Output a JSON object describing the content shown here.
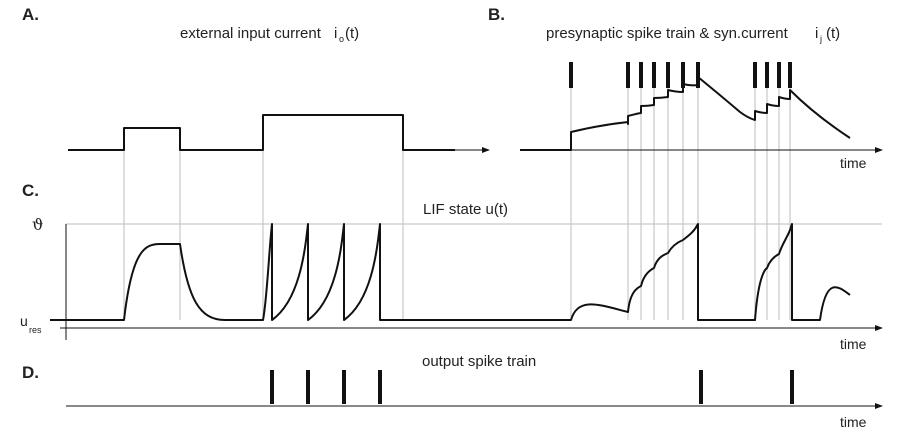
{
  "panels": {
    "a": {
      "label": "A.",
      "caption": "external input current",
      "symbol": "i",
      "symbol_sub": "o",
      "symbol_arg": "(t)"
    },
    "b": {
      "label": "B.",
      "caption": "presynaptic spike train & syn.current",
      "symbol": "i",
      "symbol_sub": "j",
      "symbol_arg": "(t)",
      "axis_label": "time"
    },
    "c": {
      "label": "C.",
      "caption": "LIF state u(t)",
      "threshold_symbol": "ϑ",
      "reset_symbol": "u",
      "reset_sub": "res",
      "axis_label": "time"
    },
    "d": {
      "label": "D.",
      "caption": "output spike train",
      "axis_label": "time"
    }
  },
  "colors": {
    "trace": "#111111",
    "guide": "#bdbdbd"
  }
}
